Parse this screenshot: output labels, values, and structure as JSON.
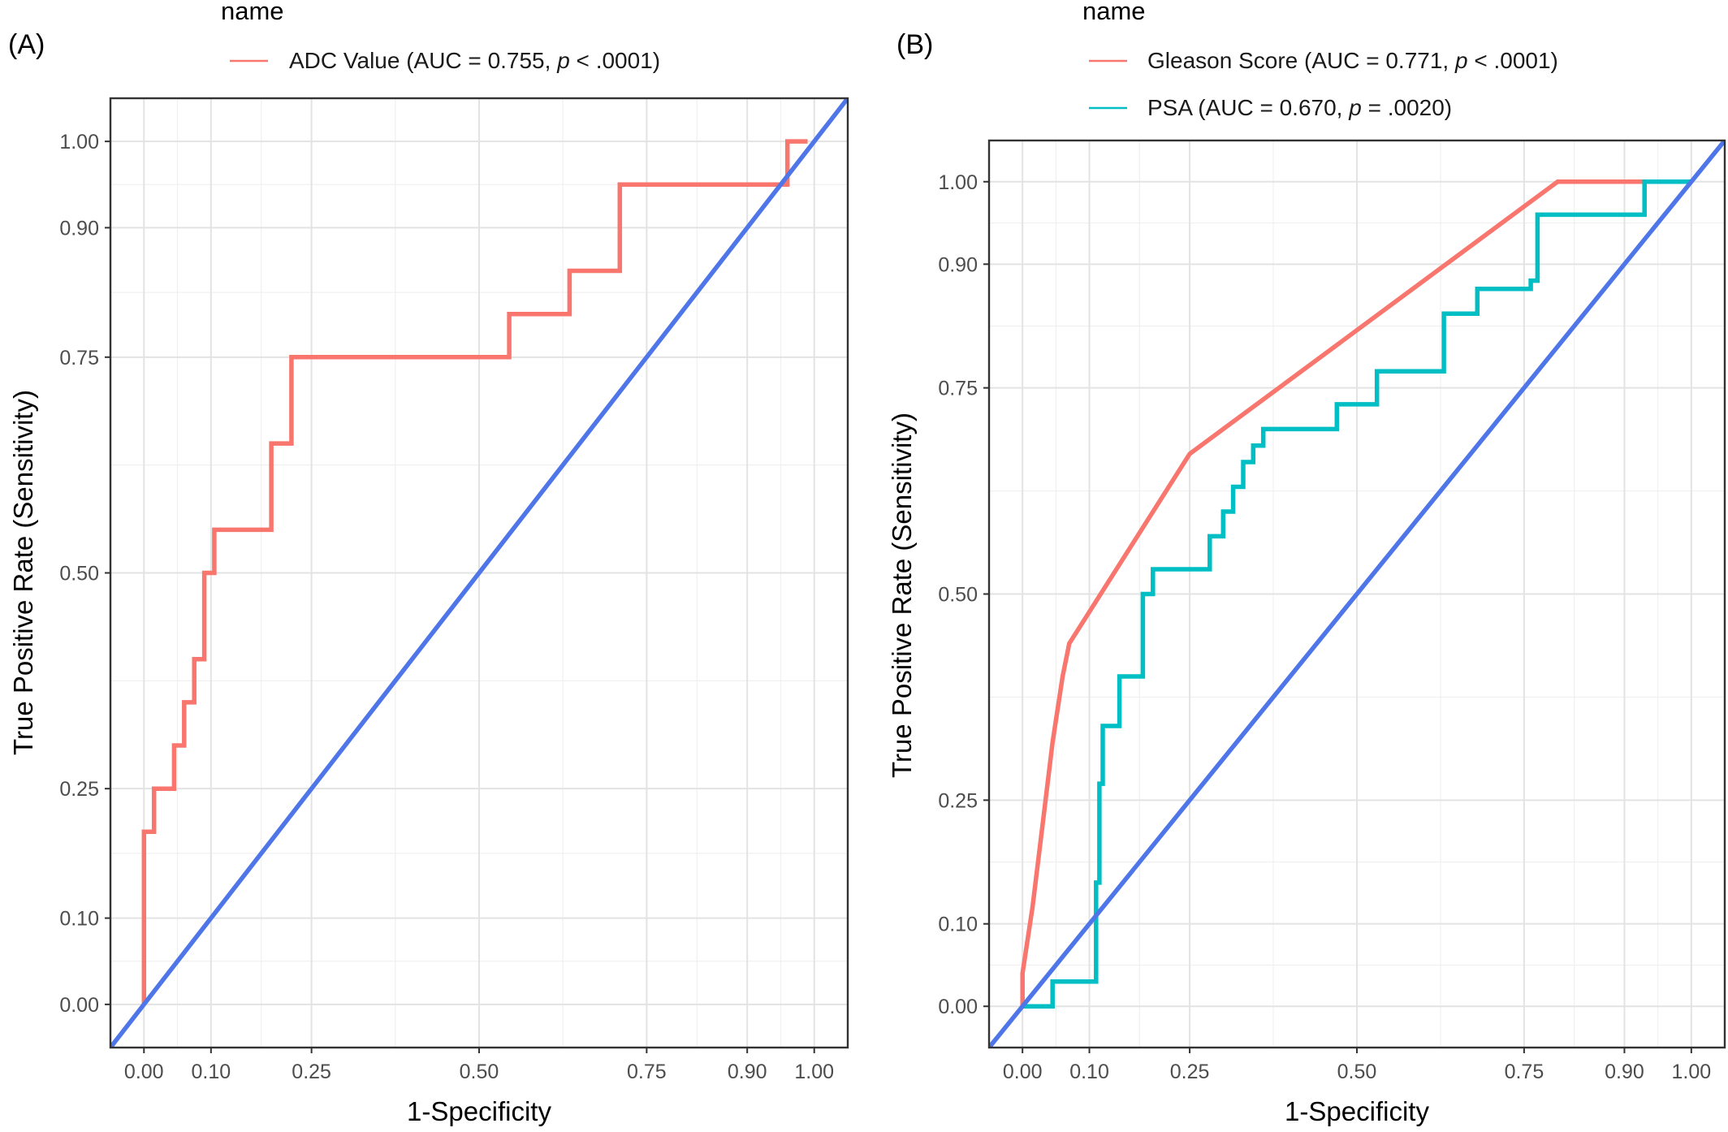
{
  "chart_data": [
    {
      "type": "line",
      "panel_label": "(A)",
      "legend_title": "name",
      "legend_position": "top",
      "xlabel": "1-Specificity",
      "ylabel": "True Positive Rate (Sensitivity)",
      "x_ticks": [
        "0.00",
        "0.10",
        "0.25",
        "0.50",
        "0.75",
        "0.90",
        "1.00"
      ],
      "y_ticks": [
        "0.00",
        "0.10",
        "0.25",
        "0.50",
        "0.75",
        "0.90",
        "1.00"
      ],
      "xlim": [
        -0.05,
        1.05
      ],
      "ylim": [
        -0.05,
        1.05
      ],
      "grid": true,
      "series": [
        {
          "name": "ADC Value (AUC = 0.755, p < .0001)",
          "legend_prefix": "ADC Value (AUC = 0.755, ",
          "legend_p": "p",
          "legend_suffix": " < .0001)",
          "color": "#F8766D",
          "x": [
            0,
            0,
            0.015,
            0.015,
            0.045,
            0.045,
            0.06,
            0.06,
            0.075,
            0.075,
            0.09,
            0.09,
            0.105,
            0.105,
            0.19,
            0.19,
            0.22,
            0.22,
            0.545,
            0.545,
            0.635,
            0.635,
            0.71,
            0.71,
            0.96,
            0.96,
            0.99
          ],
          "y": [
            0,
            0.2,
            0.2,
            0.25,
            0.25,
            0.3,
            0.3,
            0.35,
            0.35,
            0.4,
            0.4,
            0.5,
            0.5,
            0.55,
            0.55,
            0.65,
            0.65,
            0.75,
            0.75,
            0.8,
            0.8,
            0.85,
            0.85,
            0.95,
            0.95,
            1.0,
            1.0
          ]
        },
        {
          "name": "",
          "color": "#4F76E8",
          "reference": true,
          "x": [
            -0.05,
            1.05
          ],
          "y": [
            -0.05,
            1.05
          ]
        }
      ]
    },
    {
      "type": "line",
      "panel_label": "(B)",
      "legend_title": "name",
      "legend_position": "top",
      "xlabel": "1-Specificity",
      "ylabel": "True Positive Rate (Sensitivity)",
      "x_ticks": [
        "0.00",
        "0.10",
        "0.25",
        "0.50",
        "0.75",
        "0.90",
        "1.00"
      ],
      "y_ticks": [
        "0.00",
        "0.10",
        "0.25",
        "0.50",
        "0.75",
        "0.90",
        "1.00"
      ],
      "xlim": [
        -0.05,
        1.05
      ],
      "ylim": [
        -0.05,
        1.05
      ],
      "grid": true,
      "series": [
        {
          "name": "Gleason Score (AUC = 0.771, p < .0001)",
          "legend_prefix": "Gleason Score (AUC = 0.771, ",
          "legend_p": "p",
          "legend_suffix": " < .0001)",
          "color": "#F8766D",
          "x": [
            0,
            0,
            0.015,
            0.03,
            0.045,
            0.06,
            0.07,
            0.25,
            0.8,
            0.93
          ],
          "y": [
            0,
            0.04,
            0.12,
            0.22,
            0.32,
            0.4,
            0.44,
            0.67,
            1.0,
            1.0
          ]
        },
        {
          "name": "PSA (AUC = 0.670, p = .0020)",
          "legend_prefix": "PSA (AUC = 0.670, ",
          "legend_p": "p",
          "legend_suffix": " = .0020)",
          "color": "#00BFC4",
          "x": [
            0,
            0.045,
            0.045,
            0.11,
            0.11,
            0.115,
            0.115,
            0.12,
            0.12,
            0.145,
            0.145,
            0.18,
            0.18,
            0.195,
            0.195,
            0.28,
            0.28,
            0.3,
            0.3,
            0.315,
            0.315,
            0.33,
            0.33,
            0.345,
            0.345,
            0.36,
            0.36,
            0.47,
            0.47,
            0.53,
            0.53,
            0.63,
            0.63,
            0.68,
            0.68,
            0.76,
            0.76,
            0.77,
            0.77,
            0.93,
            0.93,
            1.0
          ],
          "y": [
            0,
            0,
            0.03,
            0.03,
            0.15,
            0.15,
            0.27,
            0.27,
            0.34,
            0.34,
            0.4,
            0.4,
            0.5,
            0.5,
            0.53,
            0.53,
            0.57,
            0.57,
            0.6,
            0.6,
            0.63,
            0.63,
            0.66,
            0.66,
            0.68,
            0.68,
            0.7,
            0.7,
            0.73,
            0.73,
            0.77,
            0.77,
            0.84,
            0.84,
            0.87,
            0.87,
            0.88,
            0.88,
            0.96,
            0.96,
            1.0,
            1.0
          ]
        },
        {
          "name": "",
          "color": "#4F76E8",
          "reference": true,
          "x": [
            -0.05,
            1.05
          ],
          "y": [
            -0.05,
            1.05
          ]
        }
      ]
    }
  ]
}
